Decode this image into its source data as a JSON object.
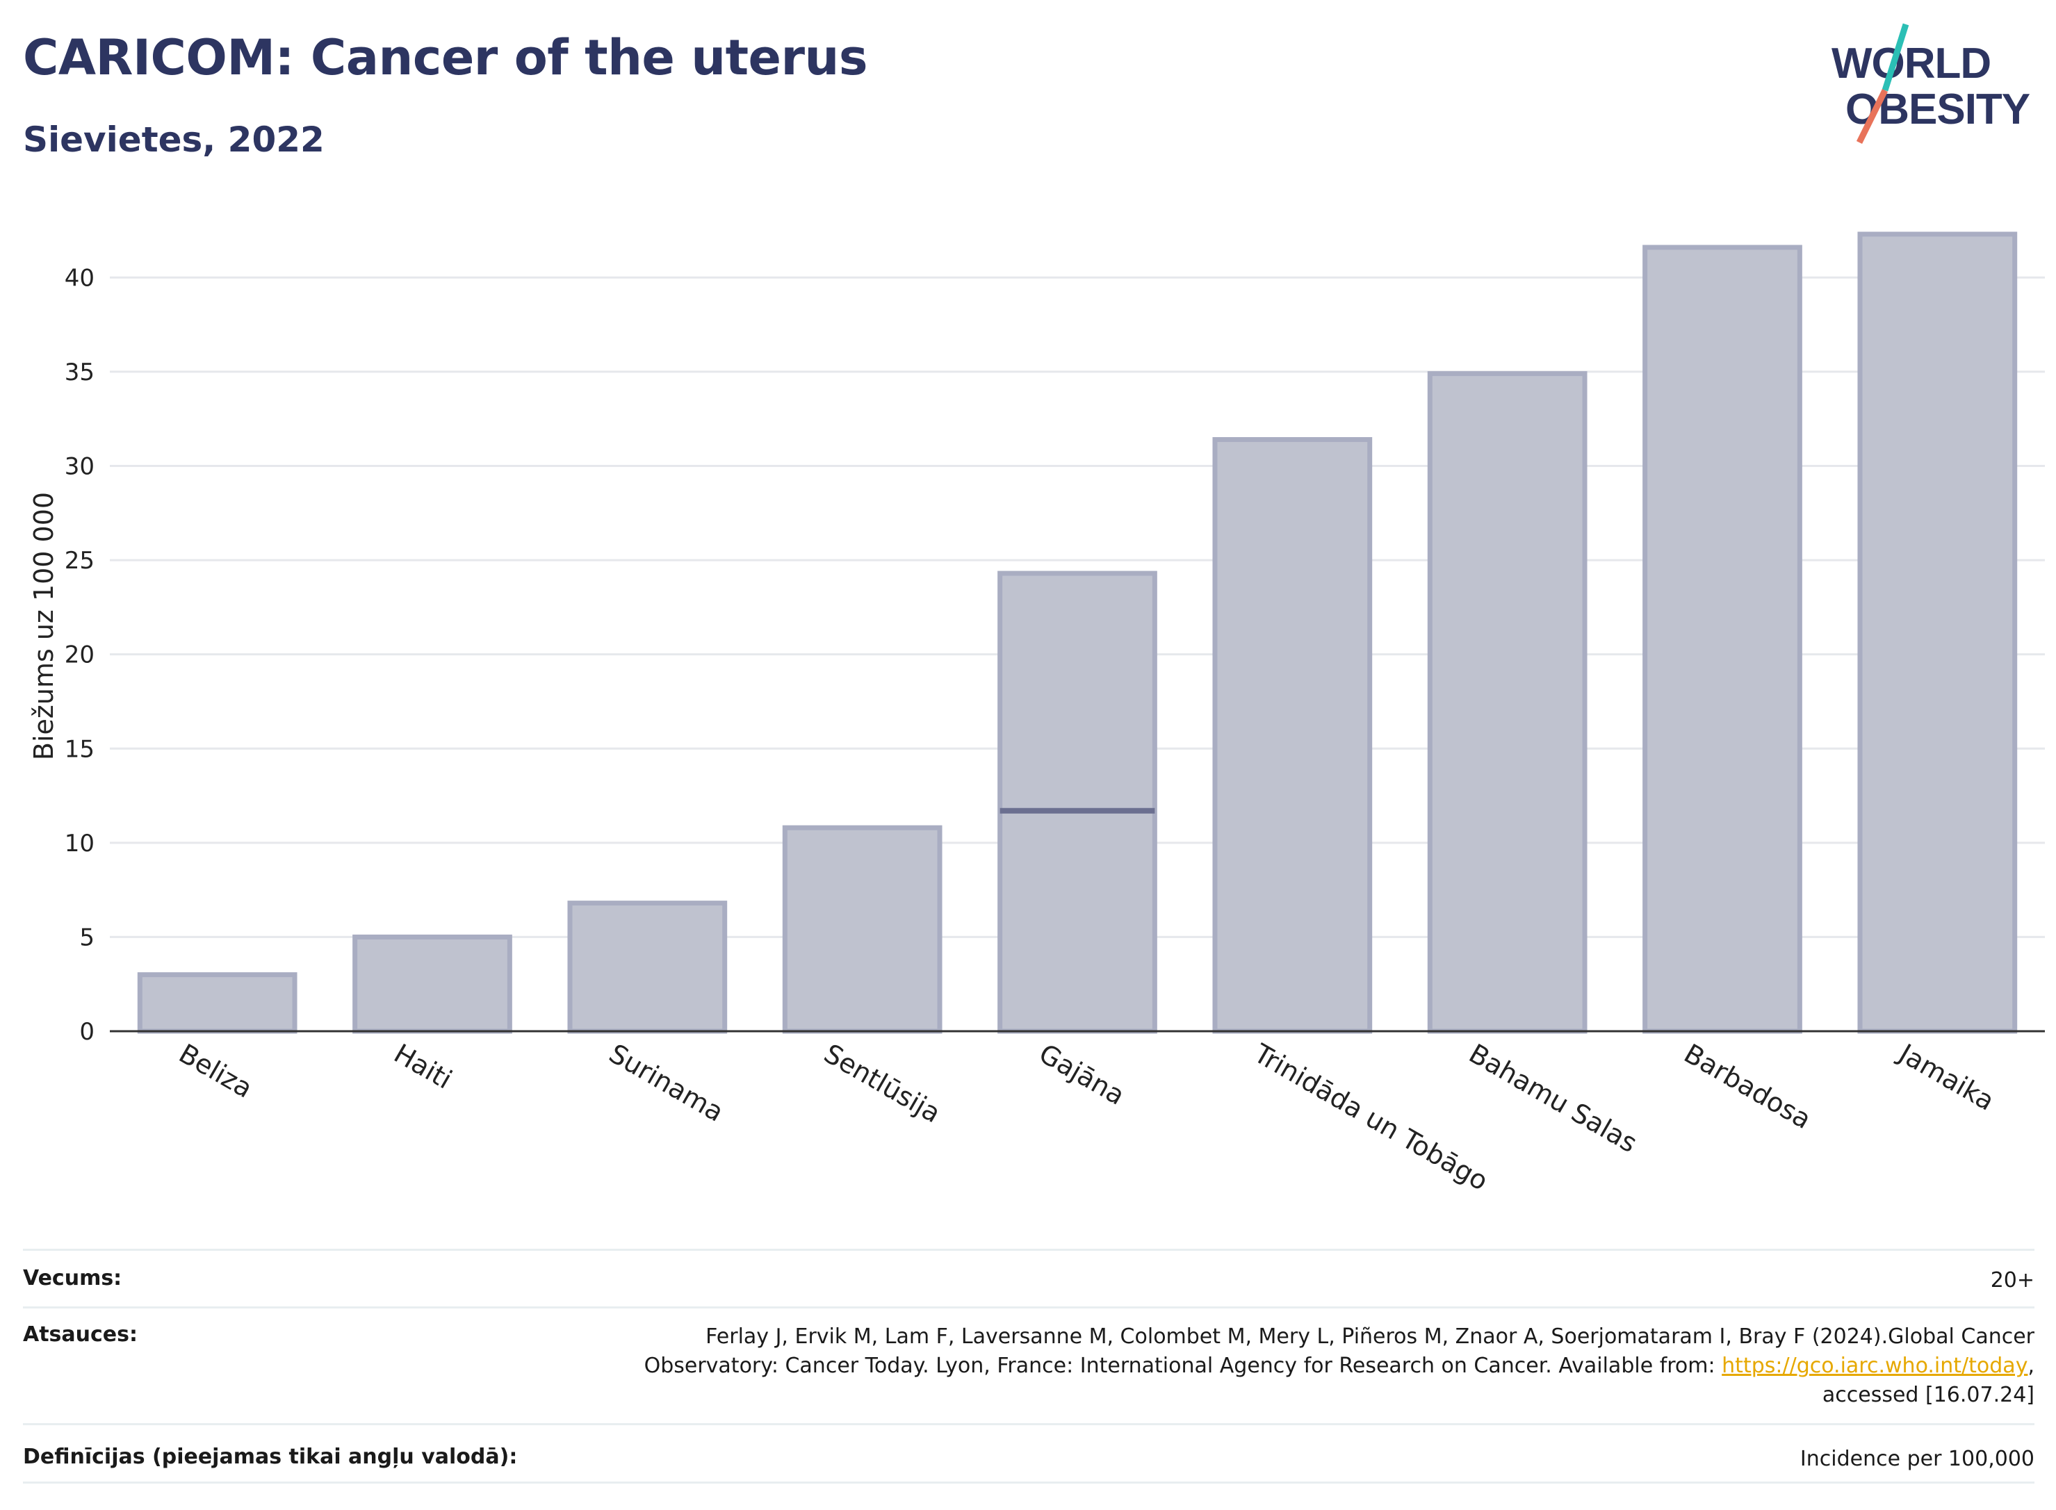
{
  "header": {
    "title": "CARICOM: Cancer of the uterus",
    "subtitle": "Sievietes, 2022"
  },
  "logo": {
    "line1": "WORLD",
    "line2": "OBESITY",
    "accent_teal": "#2bbfb5",
    "accent_coral": "#e8735a",
    "text_color": "#2d3561"
  },
  "chart_data": {
    "type": "bar",
    "ylabel": "Biežums uz 100 000",
    "xlabel": "",
    "ylim": [
      0,
      43
    ],
    "yticks": [
      0,
      5,
      10,
      15,
      20,
      25,
      30,
      35,
      40
    ],
    "grid": true,
    "categories": [
      "Beliza",
      "Haiti",
      "Surinama",
      "Sentlūsija",
      "Gajāna",
      "Trinidāda un Tobāgo",
      "Bahamu Salas",
      "Barbadosa",
      "Jamaika"
    ],
    "values": [
      3.0,
      5.0,
      6.8,
      10.8,
      24.3,
      31.4,
      34.9,
      41.6,
      42.3
    ],
    "reference_line": {
      "category": "Gajāna",
      "value": 11.7
    },
    "bar_fill": "#bfc2cf",
    "bar_stroke": "#a9adc2",
    "reference_color": "#6b6f90"
  },
  "meta": {
    "age_label": "Vecums:",
    "age_value": "20+",
    "refs_label": "Atsauces:",
    "refs_line1": "Ferlay J, Ervik M, Lam F, Laversanne M, Colombet M, Mery L, Piñeros M, Znaor A, Soerjomataram I, Bray F (2024).Global Cancer",
    "refs_line2_pre": "Observatory: Cancer Today. Lyon, France: International Agency for Research on Cancer. Available from: ",
    "refs_link": "https://gco.iarc.who.int/today",
    "refs_line2_post": ",",
    "refs_line3": "accessed [16.07.24]",
    "def_label": "Definīcijas (pieejamas tikai angļu valodā):",
    "def_value": "Incidence per 100,000"
  }
}
